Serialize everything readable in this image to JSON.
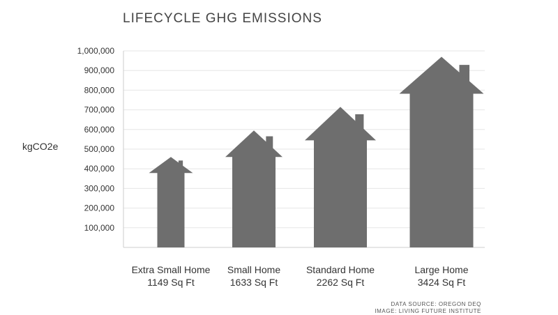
{
  "chart_data": {
    "type": "bar",
    "title": "LIFECYCLE GHG EMISSIONS",
    "ylabel": "kgCO2e",
    "xlabel": "",
    "ylim": [
      0,
      1000000
    ],
    "yticks": [
      100000,
      200000,
      300000,
      400000,
      500000,
      600000,
      700000,
      800000,
      900000,
      1000000
    ],
    "ytick_labels": [
      "100,000",
      "200,000",
      "300,000",
      "400,000",
      "500,000",
      "600,000",
      "700,000",
      "800,000",
      "900,000",
      "1,000,000"
    ],
    "categories": [
      "Extra Small Home",
      "Small Home",
      "Standard Home",
      "Large Home"
    ],
    "sublabels": [
      "1149 Sq Ft",
      "1633 Sq Ft",
      "2262 Sq Ft",
      "3424 Sq Ft"
    ],
    "values": [
      460000,
      595000,
      715000,
      970000
    ],
    "bar_shape": "house",
    "grid": "horizontal",
    "colors": {
      "bar": "#6e6e6e",
      "grid": "#e6e6e6",
      "axis": "#cccccc",
      "text": "#333333"
    }
  },
  "footnotes": {
    "source": "DATA SOURCE: OREGON DEQ",
    "image": "IMAGE: LIVING FUTURE INSTITUTE"
  }
}
